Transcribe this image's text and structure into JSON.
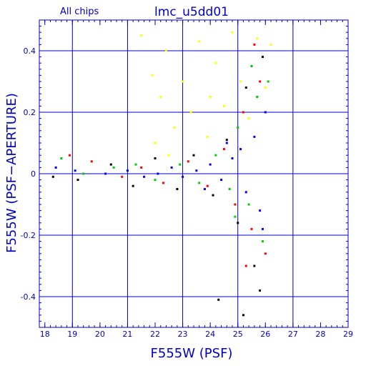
{
  "chart_data": {
    "type": "scatter",
    "title": "lmc_u5dd01",
    "subtitle": "All chips",
    "xlabel": "F555W (PSF)",
    "ylabel": "F555W (PSF−APERTURE)",
    "xlim": [
      17.8,
      29.0
    ],
    "ylim": [
      -0.5,
      0.5
    ],
    "x_ticks": [
      "18",
      "19",
      "20",
      "21",
      "22",
      "23",
      "24",
      "25",
      "26",
      "27",
      "28",
      "29"
    ],
    "y_ticks": [
      "-0.4",
      "-0.2",
      "0",
      "0.2",
      "0.4"
    ],
    "grid": true,
    "colors": {
      "axis": "#0000cc",
      "grid": "#0000cc",
      "series": [
        "#0000ff",
        "#00cc00",
        "#ff0000",
        "#000000",
        "#ffff00"
      ]
    },
    "series": [
      {
        "color": "#0000ff",
        "points": [
          [
            18.4,
            0.02
          ],
          [
            19.1,
            0.01
          ],
          [
            20.2,
            0.0
          ],
          [
            21.0,
            0.01
          ],
          [
            21.6,
            -0.01
          ],
          [
            22.1,
            0.0
          ],
          [
            22.6,
            0.02
          ],
          [
            23.0,
            -0.01
          ],
          [
            23.5,
            0.01
          ],
          [
            24.0,
            0.03
          ],
          [
            24.4,
            -0.02
          ],
          [
            24.8,
            0.05
          ],
          [
            25.1,
            0.08
          ],
          [
            25.3,
            -0.06
          ],
          [
            25.6,
            0.12
          ],
          [
            25.8,
            -0.12
          ],
          [
            26.0,
            0.2
          ],
          [
            25.9,
            -0.18
          ],
          [
            24.6,
            0.1
          ],
          [
            23.8,
            -0.05
          ]
        ]
      },
      {
        "color": "#00cc00",
        "points": [
          [
            18.6,
            0.05
          ],
          [
            19.4,
            0.0
          ],
          [
            20.5,
            0.02
          ],
          [
            21.3,
            0.03
          ],
          [
            22.0,
            -0.02
          ],
          [
            22.9,
            0.03
          ],
          [
            23.6,
            -0.03
          ],
          [
            24.2,
            0.06
          ],
          [
            24.7,
            -0.05
          ],
          [
            25.0,
            0.15
          ],
          [
            25.4,
            -0.1
          ],
          [
            25.7,
            0.25
          ],
          [
            25.9,
            -0.22
          ],
          [
            26.1,
            0.3
          ],
          [
            25.5,
            0.35
          ],
          [
            24.9,
            -0.14
          ]
        ]
      },
      {
        "color": "#ff0000",
        "points": [
          [
            18.9,
            0.06
          ],
          [
            19.7,
            0.04
          ],
          [
            20.8,
            -0.01
          ],
          [
            21.5,
            0.02
          ],
          [
            22.3,
            -0.03
          ],
          [
            23.2,
            0.04
          ],
          [
            23.9,
            -0.04
          ],
          [
            24.5,
            0.08
          ],
          [
            24.9,
            -0.1
          ],
          [
            25.2,
            0.2
          ],
          [
            25.5,
            -0.18
          ],
          [
            25.8,
            0.3
          ],
          [
            26.0,
            -0.26
          ],
          [
            25.6,
            0.42
          ],
          [
            25.3,
            -0.3
          ]
        ]
      },
      {
        "color": "#000000",
        "points": [
          [
            18.3,
            -0.01
          ],
          [
            19.2,
            -0.02
          ],
          [
            20.4,
            0.03
          ],
          [
            21.2,
            -0.04
          ],
          [
            22.0,
            0.05
          ],
          [
            22.8,
            -0.05
          ],
          [
            23.4,
            0.06
          ],
          [
            24.1,
            -0.07
          ],
          [
            24.6,
            0.11
          ],
          [
            25.0,
            -0.16
          ],
          [
            25.3,
            0.28
          ],
          [
            25.6,
            -0.3
          ],
          [
            25.9,
            0.38
          ],
          [
            25.8,
            -0.38
          ],
          [
            25.2,
            -0.46
          ],
          [
            24.3,
            -0.41
          ]
        ]
      },
      {
        "color": "#ffff00",
        "points": [
          [
            21.5,
            0.45
          ],
          [
            21.9,
            0.32
          ],
          [
            22.2,
            0.25
          ],
          [
            22.4,
            0.4
          ],
          [
            22.7,
            0.15
          ],
          [
            23.0,
            0.3
          ],
          [
            23.3,
            0.2
          ],
          [
            23.6,
            0.43
          ],
          [
            23.9,
            0.12
          ],
          [
            24.2,
            0.36
          ],
          [
            24.5,
            0.22
          ],
          [
            24.8,
            0.46
          ],
          [
            25.1,
            0.3
          ],
          [
            25.4,
            0.18
          ],
          [
            25.7,
            0.44
          ],
          [
            26.0,
            0.28
          ],
          [
            26.2,
            0.42
          ],
          [
            22.0,
            0.1
          ],
          [
            22.5,
            0.06
          ],
          [
            24.0,
            0.25
          ]
        ]
      }
    ]
  }
}
